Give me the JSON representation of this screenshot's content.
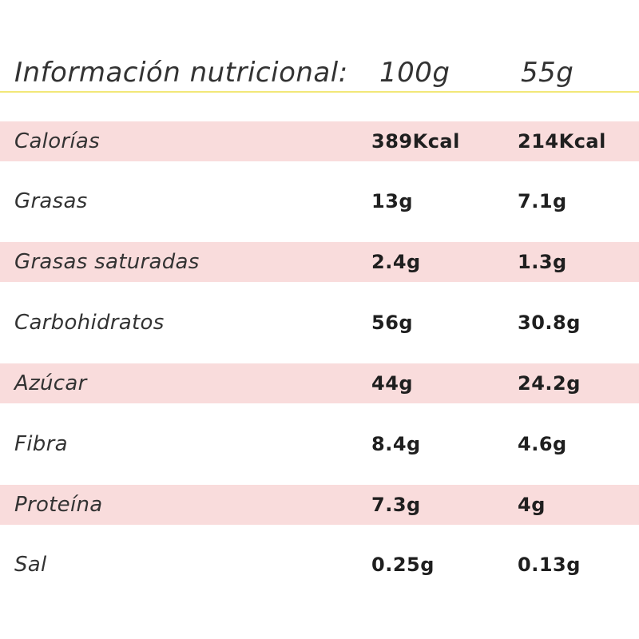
{
  "colors": {
    "row_shade": "#f9dcdc",
    "header_rule": "#f2e878",
    "text": "#222222",
    "background": "#ffffff"
  },
  "header": {
    "label": "Información nutricional:",
    "col1": "100g",
    "col2": "55g"
  },
  "rows": [
    {
      "name": "Calorías",
      "v1": "389Kcal",
      "v2": "214Kcal",
      "shaded": true
    },
    {
      "name": "Grasas",
      "v1": "13g",
      "v2": "7.1g",
      "shaded": false
    },
    {
      "name": "Grasas saturadas",
      "v1": "2.4g",
      "v2": "1.3g",
      "shaded": true
    },
    {
      "name": "Carbohidratos",
      "v1": "56g",
      "v2": "30.8g",
      "shaded": false
    },
    {
      "name": "Azúcar",
      "v1": "44g",
      "v2": "24.2g",
      "shaded": true
    },
    {
      "name": "Fibra",
      "v1": "8.4g",
      "v2": "4.6g",
      "shaded": false
    },
    {
      "name": "Proteína",
      "v1": "7.3g",
      "v2": "4g",
      "shaded": true
    },
    {
      "name": "Sal",
      "v1": "0.25g",
      "v2": "0.13g",
      "shaded": false
    }
  ]
}
